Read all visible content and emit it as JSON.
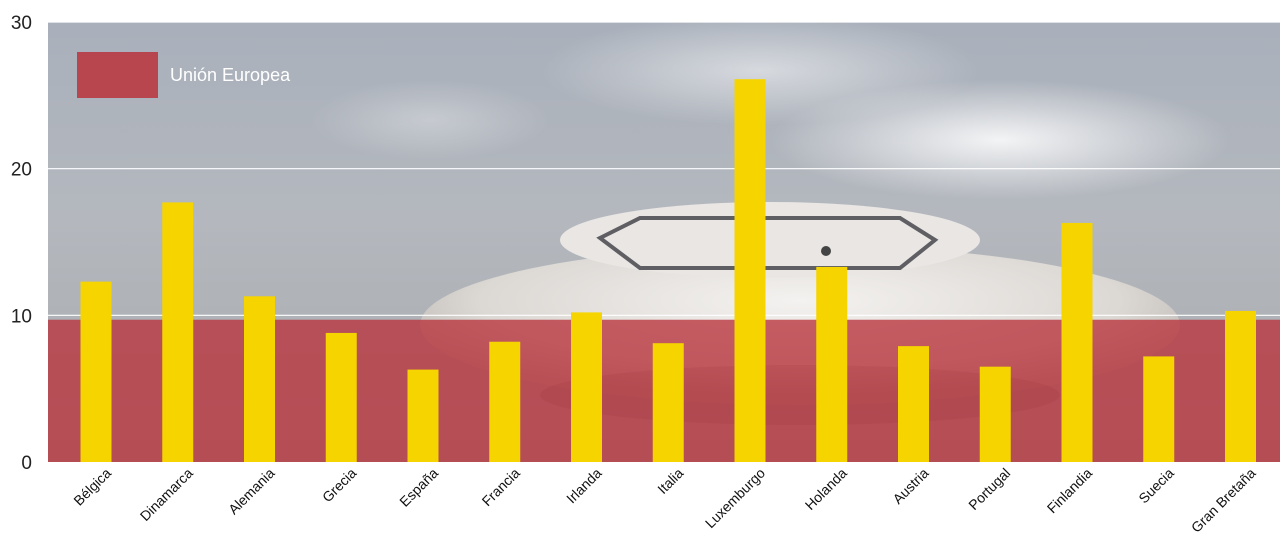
{
  "chart_data": {
    "type": "bar",
    "categories": [
      "Bélgica",
      "Dinamarca",
      "Alemania",
      "Grecia",
      "España",
      "Francia",
      "Irlanda",
      "Italia",
      "Luxemburgo",
      "Holanda",
      "Austria",
      "Portugal",
      "Finlandia",
      "Suecia",
      "Gran Bretaña"
    ],
    "series": [
      {
        "values": [
          12.3,
          17.7,
          11.3,
          8.8,
          6.3,
          8.2,
          10.2,
          8.1,
          26.1,
          13.3,
          7.9,
          6.5,
          16.3,
          7.2,
          10.3
        ]
      }
    ],
    "reference": {
      "name": "Unión Europea",
      "value": 9.7
    },
    "ylim": [
      0,
      30
    ],
    "yticks": [
      0,
      10,
      20,
      30
    ],
    "grid": true,
    "legend_position": "top-left",
    "colors": {
      "bar": "#f5d400",
      "reference_band": "#b8333c",
      "grid": "#ffffff",
      "axis_text": "#222222"
    }
  }
}
